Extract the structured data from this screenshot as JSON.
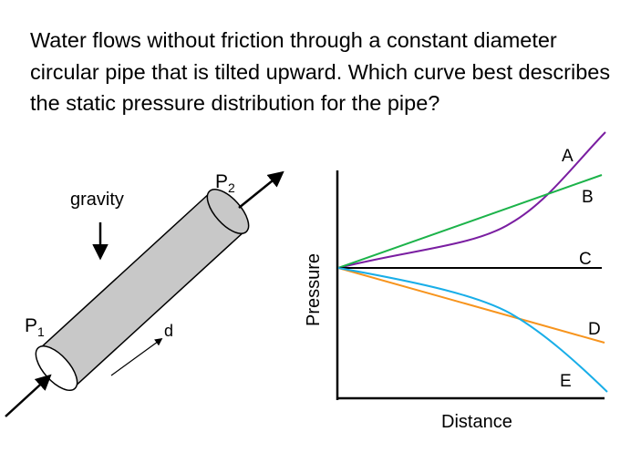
{
  "question": {
    "text": "Water flows without friction through a constant diameter circular pipe that is tilted upward. Which curve best describes the static pressure distribution for the pipe?"
  },
  "pipe": {
    "gravity_label": "gravity",
    "p1_letter": "P",
    "p1_sub": "1",
    "p2_letter": "P",
    "p2_sub": "2",
    "distance_label": "d",
    "pipe_color": "#c8c8c8"
  },
  "chart": {
    "xlabel": "Distance",
    "ylabel": "Pressure"
  },
  "chart_data": {
    "type": "line",
    "title": "",
    "xlabel": "Distance",
    "ylabel": "Pressure",
    "grid": false,
    "series": [
      {
        "name": "A",
        "color": "#7a1ea1"
      },
      {
        "name": "B",
        "color": "#1cb34a"
      },
      {
        "name": "C",
        "color": "#000000"
      },
      {
        "name": "D",
        "color": "#f7941d"
      },
      {
        "name": "E",
        "color": "#19aee8"
      }
    ]
  }
}
